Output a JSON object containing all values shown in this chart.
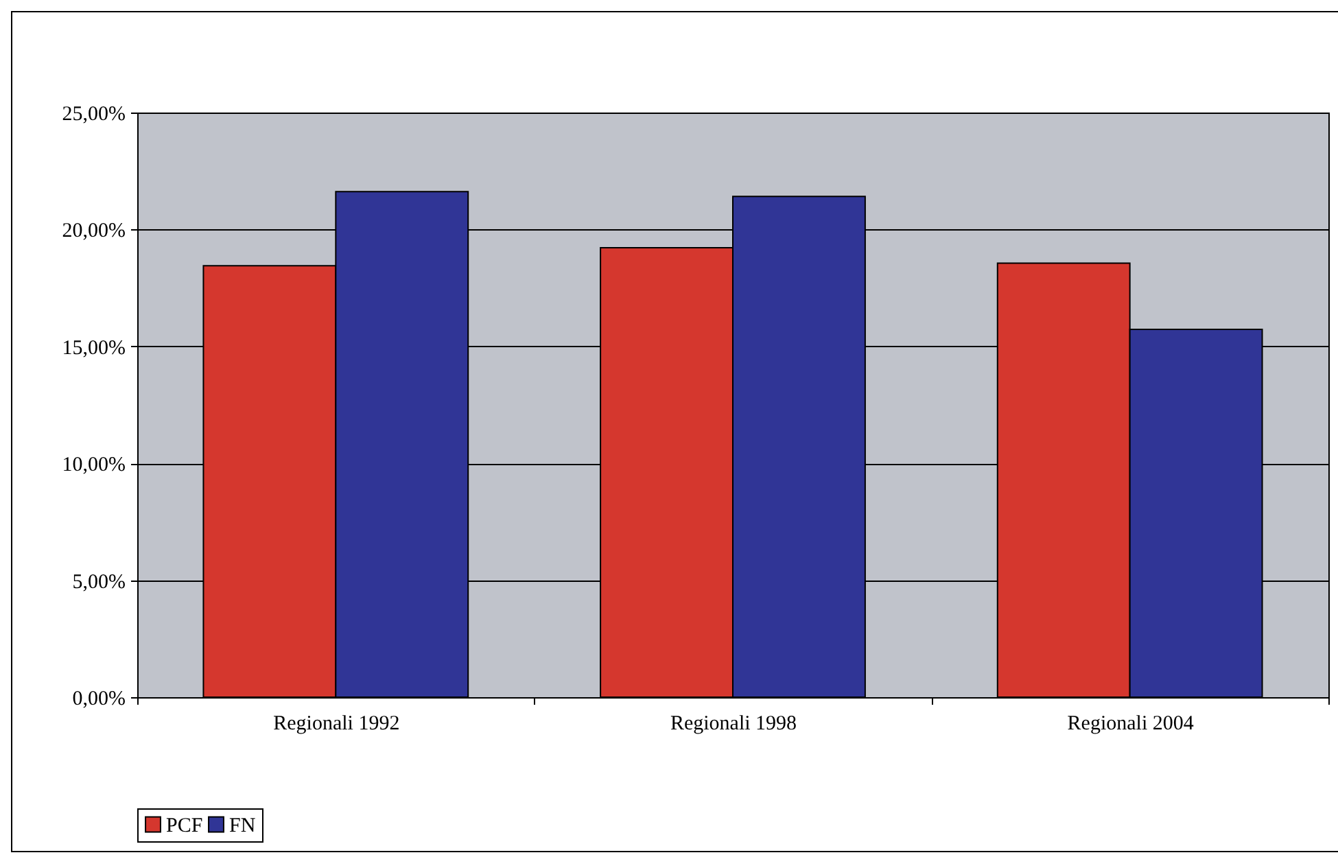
{
  "chart_data": {
    "type": "bar",
    "categories": [
      "Regionali 1992",
      "Regionali 1998",
      "Regionali 2004"
    ],
    "series": [
      {
        "name": "PCF",
        "color": "#d5372e",
        "values": [
          18.45,
          19.22,
          18.56
        ]
      },
      {
        "name": "FN",
        "color": "#303596",
        "values": [
          21.62,
          21.41,
          15.73
        ]
      }
    ],
    "ylim": [
      0,
      25
    ],
    "yticks": [
      {
        "value": 0,
        "label": "0,00%"
      },
      {
        "value": 5,
        "label": "5,00%"
      },
      {
        "value": 10,
        "label": "10,00%"
      },
      {
        "value": 15,
        "label": "15,00%"
      },
      {
        "value": 20,
        "label": "20,00%"
      },
      {
        "value": 25,
        "label": "25,00%"
      }
    ],
    "grid": "y",
    "legend": "bottom"
  }
}
